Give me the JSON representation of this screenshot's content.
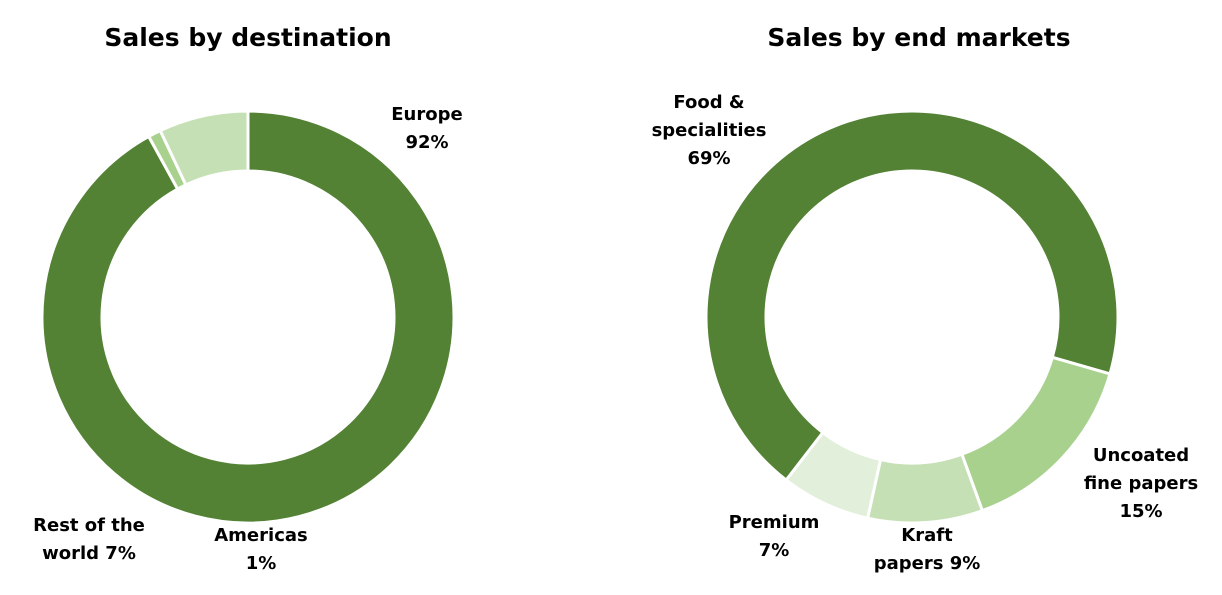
{
  "chart_data": [
    {
      "type": "pie",
      "title": "Sales by destination",
      "slices": [
        {
          "label_lines": [
            "Europe",
            "92%"
          ],
          "value": 92,
          "color": "#548235"
        },
        {
          "label_lines": [
            "Americas",
            "1%"
          ],
          "value": 1,
          "color": "#a9d18e"
        },
        {
          "label_lines": [
            "Rest of the",
            "world 7%"
          ],
          "value": 7,
          "color": "#c5e0b4"
        }
      ]
    },
    {
      "type": "pie",
      "title": "Sales by end markets",
      "slices": [
        {
          "label_lines": [
            "Food &",
            "specialities",
            "69%"
          ],
          "value": 69,
          "color": "#548235"
        },
        {
          "label_lines": [
            "Uncoated",
            "fine papers",
            "15%"
          ],
          "value": 15,
          "color": "#a9d18e"
        },
        {
          "label_lines": [
            "Kraft",
            "papers 9%"
          ],
          "value": 9,
          "color": "#c5e0b4"
        },
        {
          "label_lines": [
            "Premium",
            "7%"
          ],
          "value": 7,
          "color": "#e2efda"
        }
      ]
    }
  ]
}
